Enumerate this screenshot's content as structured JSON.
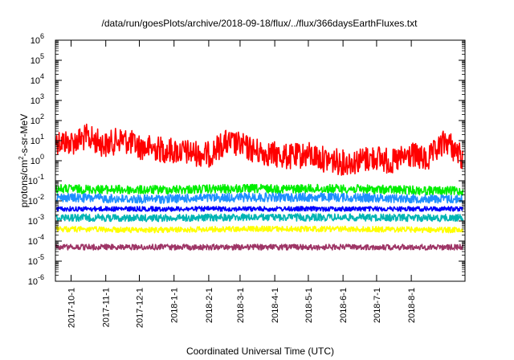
{
  "chart_data": {
    "type": "line",
    "title": "/data/run/goesPlots/archive/2018-09-18/flux/../flux/366daysEarthFluxes.txt",
    "xlabel": "Coordinated Universal Time (UTC)",
    "ylabel": "protons/cm2-s-sr-MeV",
    "ylabel_parts": {
      "base": "protons/cm",
      "sup": "2",
      "rest": "-s-sr-MeV"
    },
    "y_scale": "log",
    "ylim": [
      1e-06,
      1000000.0
    ],
    "y_ticks": [
      {
        "exp": "-6"
      },
      {
        "exp": "-5"
      },
      {
        "exp": "-4"
      },
      {
        "exp": "-3"
      },
      {
        "exp": "-2"
      },
      {
        "exp": "-1"
      },
      {
        "exp": "0"
      },
      {
        "exp": "1"
      },
      {
        "exp": "2"
      },
      {
        "exp": "3"
      },
      {
        "exp": "4"
      },
      {
        "exp": "5"
      },
      {
        "exp": "6"
      }
    ],
    "y_tick_base": "10",
    "xlim": [
      "2017-09-17",
      "2018-09-18"
    ],
    "x_ticks": [
      {
        "date": "2017-10-01",
        "label": "2017-10-1"
      },
      {
        "date": "2017-11-01",
        "label": "2017-11-1"
      },
      {
        "date": "2017-12-01",
        "label": "2017-12-1"
      },
      {
        "date": "2018-01-01",
        "label": "2018-1-1"
      },
      {
        "date": "2018-02-01",
        "label": "2018-2-1"
      },
      {
        "date": "2018-03-01",
        "label": "2018-3-1"
      },
      {
        "date": "2018-04-01",
        "label": "2018-4-1"
      },
      {
        "date": "2018-05-01",
        "label": "2018-5-1"
      },
      {
        "date": "2018-06-01",
        "label": "2018-6-1"
      },
      {
        "date": "2018-07-01",
        "label": "2018-7-1"
      },
      {
        "date": "2018-08-01",
        "label": "2018-8-1"
      }
    ],
    "grid": false,
    "legend": "none",
    "series": [
      {
        "color": "#ff0000",
        "x": [
          "2017-09-17",
          "2017-10-01",
          "2017-10-15",
          "2017-11-01",
          "2017-11-15",
          "2017-12-01",
          "2017-12-15",
          "2018-01-01",
          "2018-01-15",
          "2018-02-01",
          "2018-02-15",
          "2018-03-01",
          "2018-03-15",
          "2018-04-01",
          "2018-04-15",
          "2018-05-01",
          "2018-05-15",
          "2018-06-01",
          "2018-06-15",
          "2018-07-01",
          "2018-07-15",
          "2018-08-01",
          "2018-08-15",
          "2018-09-01",
          "2018-09-18"
        ],
        "values": [
          10,
          8,
          15,
          6,
          12,
          5,
          4,
          3,
          2.5,
          2,
          8,
          6,
          3,
          2,
          1.5,
          2,
          1.2,
          0.8,
          1,
          1.5,
          0.8,
          2,
          1,
          10,
          1
        ]
      },
      {
        "color": "#00ee00",
        "x": [
          "2017-09-17",
          "2017-12-01",
          "2018-03-01",
          "2018-06-01",
          "2018-09-18"
        ],
        "values": [
          0.04,
          0.035,
          0.04,
          0.04,
          0.03
        ]
      },
      {
        "color": "#1e90ff",
        "x": [
          "2017-09-17",
          "2017-12-01",
          "2018-03-01",
          "2018-06-01",
          "2018-09-18"
        ],
        "values": [
          0.015,
          0.012,
          0.015,
          0.015,
          0.012
        ]
      },
      {
        "color": "#0000ff",
        "x": [
          "2017-09-17",
          "2017-12-01",
          "2018-03-01",
          "2018-06-01",
          "2018-09-18"
        ],
        "values": [
          0.004,
          0.004,
          0.004,
          0.004,
          0.004
        ]
      },
      {
        "color": "#00b4b4",
        "x": [
          "2017-09-17",
          "2017-12-01",
          "2018-03-01",
          "2018-06-01",
          "2018-09-18"
        ],
        "values": [
          0.0015,
          0.0014,
          0.0015,
          0.0015,
          0.0014
        ]
      },
      {
        "color": "#ffff00",
        "x": [
          "2017-09-17",
          "2017-12-01",
          "2018-03-01",
          "2018-06-01",
          "2018-09-18"
        ],
        "values": [
          0.0004,
          0.00035,
          0.0004,
          0.0004,
          0.00035
        ]
      },
      {
        "color": "#9e3566",
        "x": [
          "2017-09-17",
          "2017-12-01",
          "2018-03-01",
          "2018-06-01",
          "2018-09-18"
        ],
        "values": [
          5e-05,
          5e-05,
          5e-05,
          5e-05,
          5e-05
        ]
      }
    ]
  }
}
